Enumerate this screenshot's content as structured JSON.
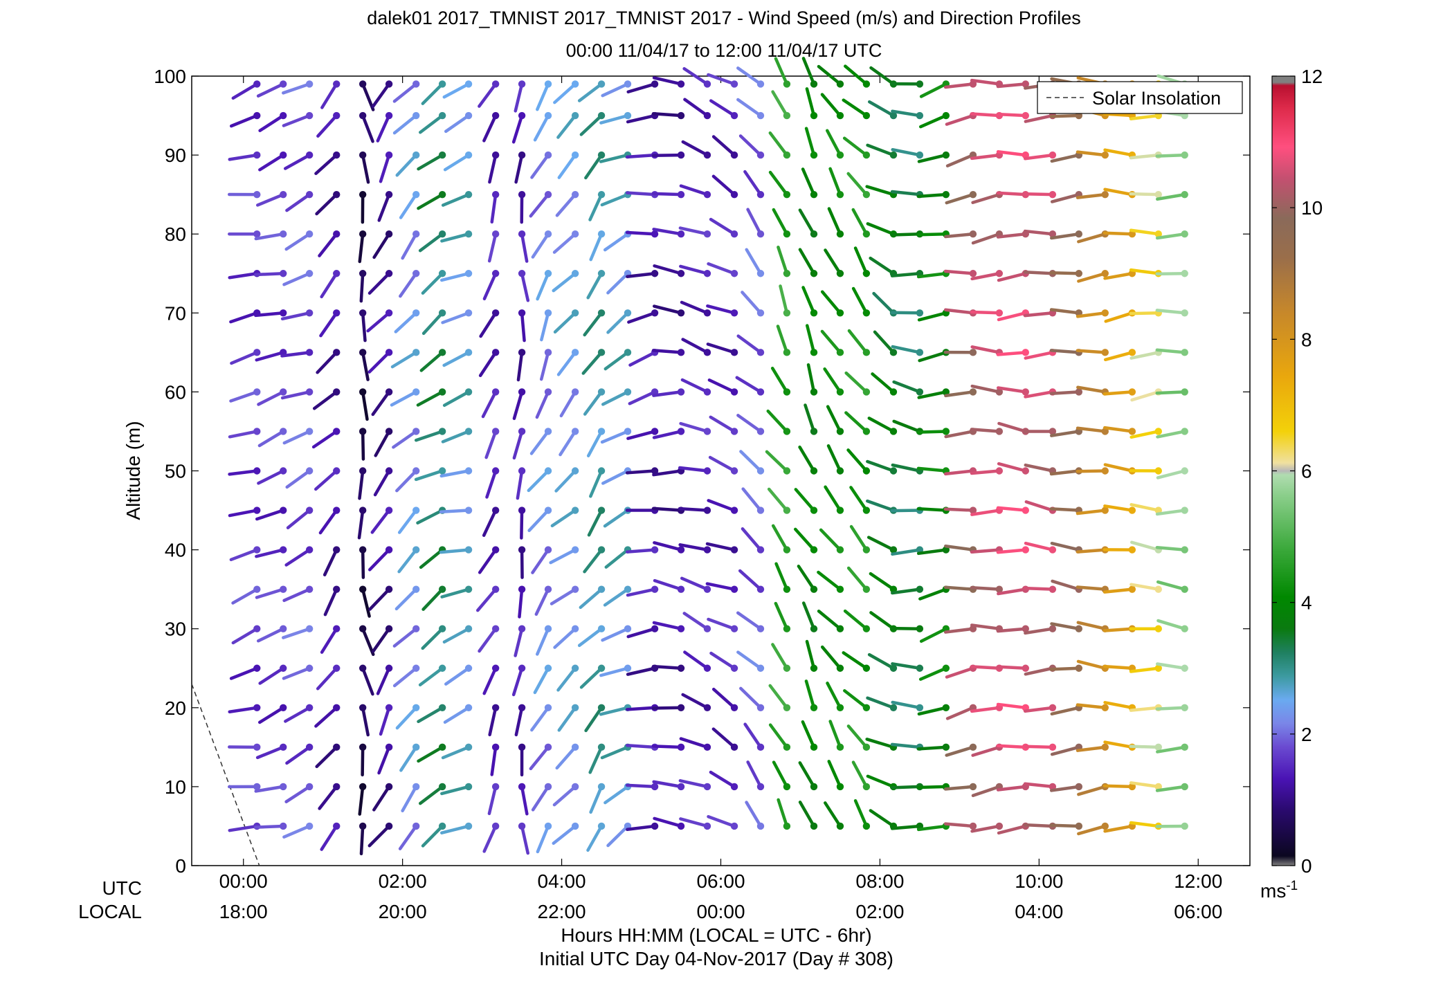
{
  "chart_data": {
    "type": "wind-barb-profile",
    "title_line1": "dalek01 2017_TMNIST 2017_TMNIST 2017 - Wind Speed (m/s) and Direction Profiles",
    "title_line2": "00:00 11/04/17 to 12:00 11/04/17  UTC",
    "ylabel": "Altitude (m)",
    "xlabel_line1": "Hours HH:MM  (LOCAL = UTC - 6hr)",
    "xlabel_line2": "Initial UTC Day 04-Nov-2017 (Day # 308)",
    "utc_row_label": "UTC",
    "local_row_label": "LOCAL",
    "xlim_hours": [
      -0.65,
      12.65
    ],
    "ylim": [
      0,
      100
    ],
    "yticks": [
      "0",
      "10",
      "20",
      "30",
      "40",
      "50",
      "60",
      "70",
      "80",
      "90",
      "100"
    ],
    "xticks_utc": [
      "00:00",
      "02:00",
      "04:00",
      "06:00",
      "08:00",
      "10:00",
      "12:00"
    ],
    "xticks_local": [
      "18:00",
      "20:00",
      "22:00",
      "00:00",
      "02:00",
      "04:00",
      "06:00"
    ],
    "legend_entry": "Solar Insolation",
    "legend_position": "top-right",
    "colorbar": {
      "ticks": [
        "0",
        "2",
        "4",
        "6",
        "8",
        "10",
        "12"
      ],
      "unit": "ms",
      "unit_exponent": "-1",
      "min": 0,
      "max": 12
    },
    "solar_insolation_line": {
      "hours": [
        -0.65,
        0.2
      ],
      "altitude": [
        23,
        0
      ]
    },
    "altitudes": [
      5,
      10,
      15,
      20,
      25,
      30,
      35,
      40,
      45,
      50,
      55,
      60,
      65,
      70,
      75,
      80,
      85,
      90,
      95,
      99
    ],
    "times_hours": [
      0.17,
      0.5,
      0.83,
      1.17,
      1.5,
      1.83,
      2.17,
      2.5,
      2.83,
      3.17,
      3.5,
      3.83,
      4.17,
      4.5,
      4.83,
      5.17,
      5.5,
      5.83,
      6.17,
      6.5,
      6.83,
      7.17,
      7.5,
      7.83,
      8.17,
      8.5,
      8.83,
      9.17,
      9.5,
      9.83,
      10.17,
      10.5,
      10.83,
      11.17,
      11.5,
      11.83
    ],
    "speed_by_time_ms": [
      1.6,
      1.6,
      1.8,
      1.2,
      0.5,
      1.1,
      2.3,
      3.2,
      2.6,
      1.4,
      1.3,
      2.2,
      2.4,
      2.9,
      2.6,
      1.3,
      1.2,
      1.4,
      1.4,
      1.9,
      4.6,
      3.9,
      4.1,
      4.4,
      3.6,
      3.3,
      4.0,
      10.1,
      10.4,
      10.6,
      10.4,
      9.7,
      8.4,
      7.6,
      6.4,
      5.6
    ],
    "direction_by_time_deg": [
      255,
      250,
      245,
      220,
      175,
      215,
      225,
      235,
      250,
      205,
      185,
      210,
      225,
      215,
      240,
      260,
      275,
      290,
      295,
      315,
      330,
      335,
      325,
      320,
      300,
      275,
      260,
      265,
      268,
      270,
      270,
      270,
      270,
      270,
      270,
      270
    ]
  }
}
